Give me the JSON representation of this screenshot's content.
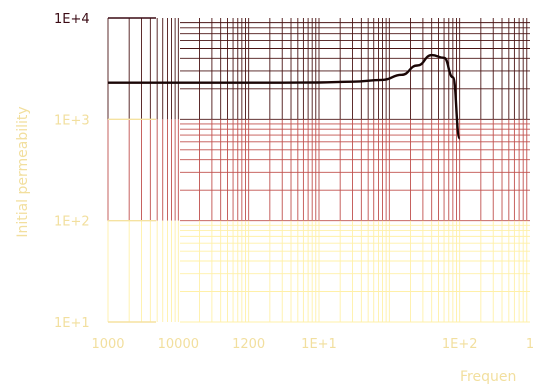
{
  "chart_data": {
    "type": "line",
    "xlabel": "Frequen",
    "ylabel": "Initial permeability",
    "y_scale": "log",
    "ylim": [
      10,
      10000
    ],
    "y_ticks": [
      {
        "value": 10000,
        "label": "1E+4"
      },
      {
        "value": 1000,
        "label": "1E+3"
      },
      {
        "value": 100,
        "label": "1E+2"
      },
      {
        "value": 10,
        "label": "1E+1"
      }
    ],
    "x_scale": "log",
    "xlim": [
      0.001,
      1000
    ],
    "x_ticks": [
      {
        "value": 0.001,
        "label": "1000"
      },
      {
        "value": 0.01,
        "label": "10000"
      },
      {
        "value": 0.1,
        "label": "1200"
      },
      {
        "value": 1,
        "label": "1E+1"
      },
      {
        "value": 100,
        "label": "1E+2"
      },
      {
        "value": 1000,
        "label": "1"
      }
    ],
    "grid": true,
    "colors": {
      "curve": "#1a0606",
      "grid_dark": "#4a1414",
      "grid_red": "#c0504d",
      "grid_light": "#fff0a8",
      "tick_top": "#3a0a14",
      "tick_faded": "#f5e2a0",
      "label": "#f2df9e"
    },
    "series": [
      {
        "x": [
          0.001,
          0.003,
          0.01,
          0.03,
          0.1,
          0.3,
          1,
          3,
          8,
          15,
          25,
          40,
          60,
          80,
          100
        ],
        "y": [
          2300,
          2300,
          2300,
          2300,
          2300,
          2300,
          2310,
          2350,
          2450,
          2750,
          3400,
          4300,
          4050,
          2600,
          650
        ]
      }
    ]
  }
}
